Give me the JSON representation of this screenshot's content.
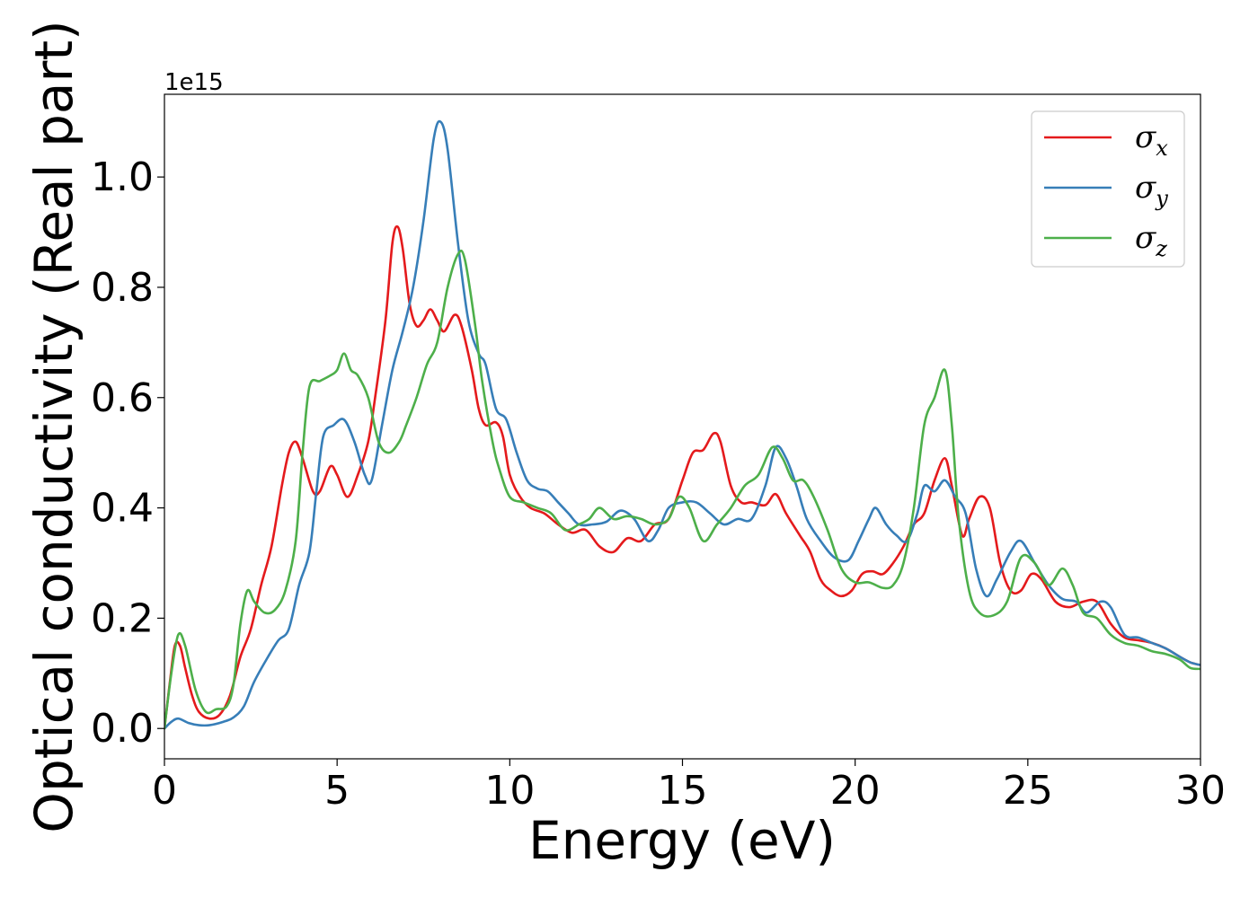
{
  "chart_data": {
    "type": "line",
    "xlabel": "Energy (eV)",
    "ylabel": "Optical conductivity (Real part)",
    "y_offset_text": "1e15",
    "xlim": [
      0,
      30
    ],
    "ylim": [
      -0.055,
      1.15
    ],
    "x_ticks": [
      0,
      5,
      10,
      15,
      20,
      25,
      30
    ],
    "x_tick_labels": [
      "0",
      "5",
      "10",
      "15",
      "20",
      "25",
      "30"
    ],
    "y_ticks": [
      0.0,
      0.2,
      0.4,
      0.6,
      0.8,
      1.0
    ],
    "y_tick_labels": [
      "0.0",
      "0.2",
      "0.4",
      "0.6",
      "0.8",
      "1.0"
    ],
    "grid": false,
    "legend_position": "top-right",
    "series": [
      {
        "name": "σx",
        "legend_base": "σ",
        "legend_sub": "x",
        "color": "#e41a1c",
        "points": [
          [
            0,
            0
          ],
          [
            0.15,
            0.08
          ],
          [
            0.3,
            0.15
          ],
          [
            0.45,
            0.15
          ],
          [
            0.6,
            0.11
          ],
          [
            0.8,
            0.06
          ],
          [
            1.0,
            0.03
          ],
          [
            1.3,
            0.018
          ],
          [
            1.6,
            0.025
          ],
          [
            1.9,
            0.06
          ],
          [
            2.2,
            0.13
          ],
          [
            2.5,
            0.18
          ],
          [
            2.8,
            0.26
          ],
          [
            3.1,
            0.33
          ],
          [
            3.4,
            0.44
          ],
          [
            3.6,
            0.5
          ],
          [
            3.8,
            0.52
          ],
          [
            4.0,
            0.49
          ],
          [
            4.3,
            0.43
          ],
          [
            4.5,
            0.43
          ],
          [
            4.8,
            0.475
          ],
          [
            5.0,
            0.46
          ],
          [
            5.3,
            0.42
          ],
          [
            5.6,
            0.46
          ],
          [
            5.9,
            0.52
          ],
          [
            6.1,
            0.6
          ],
          [
            6.4,
            0.74
          ],
          [
            6.6,
            0.88
          ],
          [
            6.75,
            0.91
          ],
          [
            6.9,
            0.87
          ],
          [
            7.1,
            0.77
          ],
          [
            7.3,
            0.73
          ],
          [
            7.5,
            0.74
          ],
          [
            7.7,
            0.76
          ],
          [
            7.9,
            0.74
          ],
          [
            8.1,
            0.72
          ],
          [
            8.4,
            0.75
          ],
          [
            8.6,
            0.73
          ],
          [
            8.9,
            0.65
          ],
          [
            9.1,
            0.58
          ],
          [
            9.3,
            0.55
          ],
          [
            9.6,
            0.555
          ],
          [
            9.8,
            0.53
          ],
          [
            10.0,
            0.46
          ],
          [
            10.3,
            0.42
          ],
          [
            10.6,
            0.4
          ],
          [
            11.0,
            0.39
          ],
          [
            11.4,
            0.37
          ],
          [
            11.8,
            0.355
          ],
          [
            12.2,
            0.36
          ],
          [
            12.6,
            0.33
          ],
          [
            13.0,
            0.32
          ],
          [
            13.4,
            0.345
          ],
          [
            13.8,
            0.34
          ],
          [
            14.2,
            0.37
          ],
          [
            14.6,
            0.38
          ],
          [
            15.0,
            0.45
          ],
          [
            15.3,
            0.5
          ],
          [
            15.6,
            0.505
          ],
          [
            15.9,
            0.535
          ],
          [
            16.1,
            0.52
          ],
          [
            16.4,
            0.44
          ],
          [
            16.7,
            0.41
          ],
          [
            17.0,
            0.41
          ],
          [
            17.4,
            0.405
          ],
          [
            17.7,
            0.425
          ],
          [
            18.0,
            0.39
          ],
          [
            18.4,
            0.35
          ],
          [
            18.7,
            0.32
          ],
          [
            19.0,
            0.27
          ],
          [
            19.3,
            0.25
          ],
          [
            19.6,
            0.24
          ],
          [
            19.9,
            0.25
          ],
          [
            20.2,
            0.28
          ],
          [
            20.5,
            0.285
          ],
          [
            20.8,
            0.28
          ],
          [
            21.1,
            0.3
          ],
          [
            21.4,
            0.33
          ],
          [
            21.7,
            0.37
          ],
          [
            22.0,
            0.39
          ],
          [
            22.3,
            0.45
          ],
          [
            22.6,
            0.49
          ],
          [
            22.8,
            0.44
          ],
          [
            23.1,
            0.35
          ],
          [
            23.3,
            0.38
          ],
          [
            23.6,
            0.42
          ],
          [
            23.9,
            0.4
          ],
          [
            24.2,
            0.3
          ],
          [
            24.5,
            0.25
          ],
          [
            24.8,
            0.25
          ],
          [
            25.1,
            0.28
          ],
          [
            25.4,
            0.27
          ],
          [
            25.8,
            0.23
          ],
          [
            26.2,
            0.22
          ],
          [
            26.6,
            0.23
          ],
          [
            27.0,
            0.23
          ],
          [
            27.4,
            0.19
          ],
          [
            27.8,
            0.165
          ],
          [
            28.2,
            0.16
          ],
          [
            28.6,
            0.155
          ],
          [
            29.0,
            0.145
          ],
          [
            29.4,
            0.13
          ],
          [
            29.7,
            0.12
          ],
          [
            30.0,
            0.115
          ]
        ]
      },
      {
        "name": "σy",
        "legend_base": "σ",
        "legend_sub": "y",
        "color": "#377eb8",
        "points": [
          [
            0,
            0
          ],
          [
            0.2,
            0.012
          ],
          [
            0.4,
            0.018
          ],
          [
            0.7,
            0.01
          ],
          [
            1.0,
            0.006
          ],
          [
            1.3,
            0.006
          ],
          [
            1.7,
            0.012
          ],
          [
            2.0,
            0.02
          ],
          [
            2.3,
            0.04
          ],
          [
            2.6,
            0.085
          ],
          [
            3.0,
            0.13
          ],
          [
            3.3,
            0.16
          ],
          [
            3.6,
            0.18
          ],
          [
            3.9,
            0.26
          ],
          [
            4.2,
            0.32
          ],
          [
            4.4,
            0.43
          ],
          [
            4.6,
            0.53
          ],
          [
            4.9,
            0.55
          ],
          [
            5.2,
            0.56
          ],
          [
            5.5,
            0.52
          ],
          [
            5.8,
            0.46
          ],
          [
            6.0,
            0.45
          ],
          [
            6.3,
            0.55
          ],
          [
            6.6,
            0.65
          ],
          [
            6.9,
            0.72
          ],
          [
            7.2,
            0.8
          ],
          [
            7.5,
            0.92
          ],
          [
            7.8,
            1.07
          ],
          [
            8.0,
            1.1
          ],
          [
            8.2,
            1.05
          ],
          [
            8.5,
            0.88
          ],
          [
            8.8,
            0.74
          ],
          [
            9.1,
            0.68
          ],
          [
            9.3,
            0.66
          ],
          [
            9.6,
            0.58
          ],
          [
            9.9,
            0.56
          ],
          [
            10.2,
            0.5
          ],
          [
            10.5,
            0.45
          ],
          [
            10.8,
            0.435
          ],
          [
            11.1,
            0.43
          ],
          [
            11.4,
            0.41
          ],
          [
            11.7,
            0.39
          ],
          [
            12.0,
            0.37
          ],
          [
            12.4,
            0.37
          ],
          [
            12.8,
            0.375
          ],
          [
            13.2,
            0.395
          ],
          [
            13.6,
            0.38
          ],
          [
            14.0,
            0.34
          ],
          [
            14.3,
            0.36
          ],
          [
            14.6,
            0.4
          ],
          [
            15.0,
            0.41
          ],
          [
            15.4,
            0.41
          ],
          [
            15.8,
            0.39
          ],
          [
            16.2,
            0.37
          ],
          [
            16.6,
            0.38
          ],
          [
            17.0,
            0.38
          ],
          [
            17.4,
            0.44
          ],
          [
            17.7,
            0.51
          ],
          [
            18.0,
            0.49
          ],
          [
            18.3,
            0.44
          ],
          [
            18.6,
            0.38
          ],
          [
            19.0,
            0.34
          ],
          [
            19.4,
            0.31
          ],
          [
            19.8,
            0.305
          ],
          [
            20.1,
            0.34
          ],
          [
            20.4,
            0.38
          ],
          [
            20.6,
            0.4
          ],
          [
            20.9,
            0.37
          ],
          [
            21.2,
            0.35
          ],
          [
            21.5,
            0.34
          ],
          [
            21.8,
            0.39
          ],
          [
            22.0,
            0.44
          ],
          [
            22.3,
            0.43
          ],
          [
            22.6,
            0.45
          ],
          [
            22.9,
            0.42
          ],
          [
            23.2,
            0.39
          ],
          [
            23.5,
            0.29
          ],
          [
            23.8,
            0.24
          ],
          [
            24.1,
            0.27
          ],
          [
            24.5,
            0.32
          ],
          [
            24.8,
            0.34
          ],
          [
            25.2,
            0.3
          ],
          [
            25.6,
            0.26
          ],
          [
            26.0,
            0.235
          ],
          [
            26.4,
            0.23
          ],
          [
            26.7,
            0.21
          ],
          [
            27.1,
            0.23
          ],
          [
            27.4,
            0.22
          ],
          [
            27.8,
            0.17
          ],
          [
            28.2,
            0.165
          ],
          [
            28.6,
            0.155
          ],
          [
            29.0,
            0.145
          ],
          [
            29.4,
            0.13
          ],
          [
            29.7,
            0.12
          ],
          [
            30.0,
            0.115
          ]
        ]
      },
      {
        "name": "σz",
        "legend_base": "σ",
        "legend_sub": "z",
        "color": "#4daf4a",
        "points": [
          [
            0,
            0
          ],
          [
            0.2,
            0.1
          ],
          [
            0.4,
            0.17
          ],
          [
            0.6,
            0.15
          ],
          [
            0.9,
            0.07
          ],
          [
            1.2,
            0.03
          ],
          [
            1.5,
            0.035
          ],
          [
            1.8,
            0.04
          ],
          [
            2.0,
            0.08
          ],
          [
            2.2,
            0.19
          ],
          [
            2.4,
            0.25
          ],
          [
            2.6,
            0.23
          ],
          [
            2.9,
            0.21
          ],
          [
            3.2,
            0.215
          ],
          [
            3.5,
            0.25
          ],
          [
            3.8,
            0.34
          ],
          [
            4.0,
            0.5
          ],
          [
            4.2,
            0.62
          ],
          [
            4.5,
            0.63
          ],
          [
            4.8,
            0.64
          ],
          [
            5.0,
            0.65
          ],
          [
            5.2,
            0.68
          ],
          [
            5.4,
            0.65
          ],
          [
            5.6,
            0.64
          ],
          [
            5.9,
            0.6
          ],
          [
            6.2,
            0.52
          ],
          [
            6.5,
            0.5
          ],
          [
            6.8,
            0.52
          ],
          [
            7.0,
            0.55
          ],
          [
            7.3,
            0.6
          ],
          [
            7.6,
            0.66
          ],
          [
            7.9,
            0.7
          ],
          [
            8.2,
            0.8
          ],
          [
            8.5,
            0.86
          ],
          [
            8.7,
            0.85
          ],
          [
            9.0,
            0.73
          ],
          [
            9.2,
            0.63
          ],
          [
            9.5,
            0.52
          ],
          [
            9.7,
            0.47
          ],
          [
            10.0,
            0.42
          ],
          [
            10.4,
            0.41
          ],
          [
            10.8,
            0.4
          ],
          [
            11.2,
            0.39
          ],
          [
            11.6,
            0.36
          ],
          [
            12.0,
            0.37
          ],
          [
            12.3,
            0.38
          ],
          [
            12.6,
            0.4
          ],
          [
            13.0,
            0.38
          ],
          [
            13.4,
            0.385
          ],
          [
            13.8,
            0.38
          ],
          [
            14.2,
            0.37
          ],
          [
            14.6,
            0.38
          ],
          [
            14.9,
            0.42
          ],
          [
            15.2,
            0.4
          ],
          [
            15.6,
            0.34
          ],
          [
            16.0,
            0.37
          ],
          [
            16.4,
            0.4
          ],
          [
            16.8,
            0.44
          ],
          [
            17.2,
            0.46
          ],
          [
            17.6,
            0.51
          ],
          [
            17.9,
            0.49
          ],
          [
            18.2,
            0.45
          ],
          [
            18.5,
            0.45
          ],
          [
            18.8,
            0.42
          ],
          [
            19.2,
            0.36
          ],
          [
            19.6,
            0.29
          ],
          [
            20.0,
            0.265
          ],
          [
            20.4,
            0.265
          ],
          [
            20.8,
            0.255
          ],
          [
            21.1,
            0.26
          ],
          [
            21.4,
            0.3
          ],
          [
            21.7,
            0.4
          ],
          [
            22.0,
            0.55
          ],
          [
            22.3,
            0.6
          ],
          [
            22.6,
            0.65
          ],
          [
            22.8,
            0.55
          ],
          [
            23.0,
            0.38
          ],
          [
            23.3,
            0.25
          ],
          [
            23.6,
            0.21
          ],
          [
            24.0,
            0.205
          ],
          [
            24.4,
            0.23
          ],
          [
            24.8,
            0.31
          ],
          [
            25.2,
            0.3
          ],
          [
            25.6,
            0.26
          ],
          [
            26.0,
            0.29
          ],
          [
            26.3,
            0.26
          ],
          [
            26.6,
            0.21
          ],
          [
            27.0,
            0.2
          ],
          [
            27.4,
            0.17
          ],
          [
            27.8,
            0.155
          ],
          [
            28.2,
            0.15
          ],
          [
            28.6,
            0.14
          ],
          [
            29.0,
            0.135
          ],
          [
            29.4,
            0.125
          ],
          [
            29.7,
            0.11
          ],
          [
            30.0,
            0.108
          ]
        ]
      }
    ]
  }
}
